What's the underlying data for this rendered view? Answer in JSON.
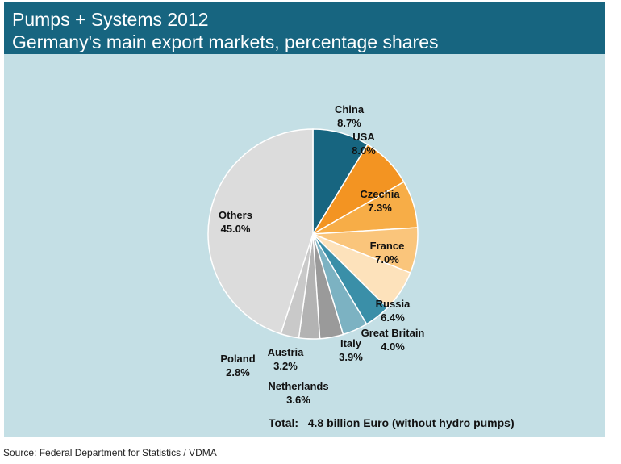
{
  "header": {
    "title": "Pumps + Systems 2012",
    "subtitle": "Germany's main export markets, percentage shares"
  },
  "total_label": "Total:",
  "total_value": "4.8 billion Euro (without hydro pumps)",
  "source": "Source: Federal Department for Statistics / VDMA",
  "chart_data": {
    "type": "pie",
    "title": "Pumps + Systems 2012",
    "subtitle": "Germany's main export markets, percentage shares",
    "start": "12 o'clock, clockwise",
    "slices": [
      {
        "label": "China",
        "value": 8.7,
        "value_label": "8.7%",
        "color": "#176580"
      },
      {
        "label": "USA",
        "value": 8.0,
        "value_label": "8.0%",
        "color": "#f39422"
      },
      {
        "label": "Czechia",
        "value": 7.3,
        "value_label": "7.3%",
        "color": "#f7ad47"
      },
      {
        "label": "France",
        "value": 7.0,
        "value_label": "7.0%",
        "color": "#fac57b"
      },
      {
        "label": "Russia",
        "value": 6.4,
        "value_label": "6.4%",
        "color": "#fde2bb"
      },
      {
        "label": "Great Britain",
        "value": 4.0,
        "value_label": "4.0%",
        "color": "#3a8fa8"
      },
      {
        "label": "Italy",
        "value": 3.9,
        "value_label": "3.9%",
        "color": "#7cb2c2"
      },
      {
        "label": "Netherlands",
        "value": 3.6,
        "value_label": "3.6%",
        "color": "#9a9a9a"
      },
      {
        "label": "Austria",
        "value": 3.2,
        "value_label": "3.2%",
        "color": "#b3b3b3"
      },
      {
        "label": "Poland",
        "value": 2.8,
        "value_label": "2.8%",
        "color": "#c9c9c9"
      },
      {
        "label": "Others",
        "value": 45.0,
        "value_label": "45.0%",
        "color": "#dcdcdc"
      }
    ],
    "total": "4.8 billion Euro (without hydro pumps)"
  }
}
